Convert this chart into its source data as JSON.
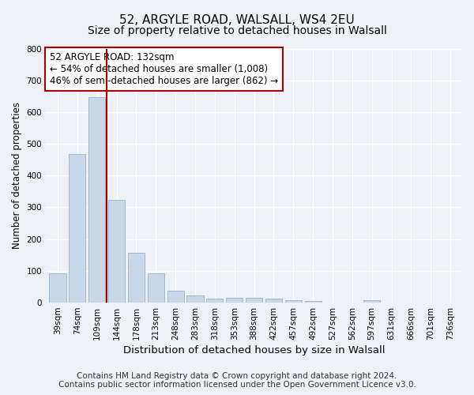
{
  "title1": "52, ARGYLE ROAD, WALSALL, WS4 2EU",
  "title2": "Size of property relative to detached houses in Walsall",
  "xlabel": "Distribution of detached houses by size in Walsall",
  "ylabel": "Number of detached properties",
  "categories": [
    "39sqm",
    "74sqm",
    "109sqm",
    "144sqm",
    "178sqm",
    "213sqm",
    "248sqm",
    "283sqm",
    "318sqm",
    "353sqm",
    "388sqm",
    "422sqm",
    "457sqm",
    "492sqm",
    "527sqm",
    "562sqm",
    "597sqm",
    "631sqm",
    "666sqm",
    "701sqm",
    "736sqm"
  ],
  "values": [
    93,
    468,
    648,
    323,
    157,
    93,
    38,
    22,
    13,
    15,
    15,
    13,
    7,
    5,
    0,
    0,
    7,
    0,
    0,
    0,
    0
  ],
  "bar_color": "#c8d8e8",
  "bar_edgecolor": "#a0b8cc",
  "vline_x": 2.5,
  "vline_color": "#aa0000",
  "annotation_line1": "52 ARGYLE ROAD: 132sqm",
  "annotation_line2": "← 54% of detached houses are smaller (1,008)",
  "annotation_line3": "46% of semi-detached houses are larger (862) →",
  "annotation_box_color": "#ffffff",
  "annotation_box_edgecolor": "#aa0000",
  "ylim": [
    0,
    800
  ],
  "yticks": [
    0,
    100,
    200,
    300,
    400,
    500,
    600,
    700,
    800
  ],
  "footer1": "Contains HM Land Registry data © Crown copyright and database right 2024.",
  "footer2": "Contains public sector information licensed under the Open Government Licence v3.0.",
  "bg_color": "#eef2f7",
  "plot_bg_color": "#eef2f7",
  "grid_color": "#ffffff",
  "title1_fontsize": 11,
  "title2_fontsize": 10,
  "xlabel_fontsize": 9.5,
  "ylabel_fontsize": 8.5,
  "tick_fontsize": 7.5,
  "annotation_fontsize": 8.5,
  "footer_fontsize": 7.5
}
